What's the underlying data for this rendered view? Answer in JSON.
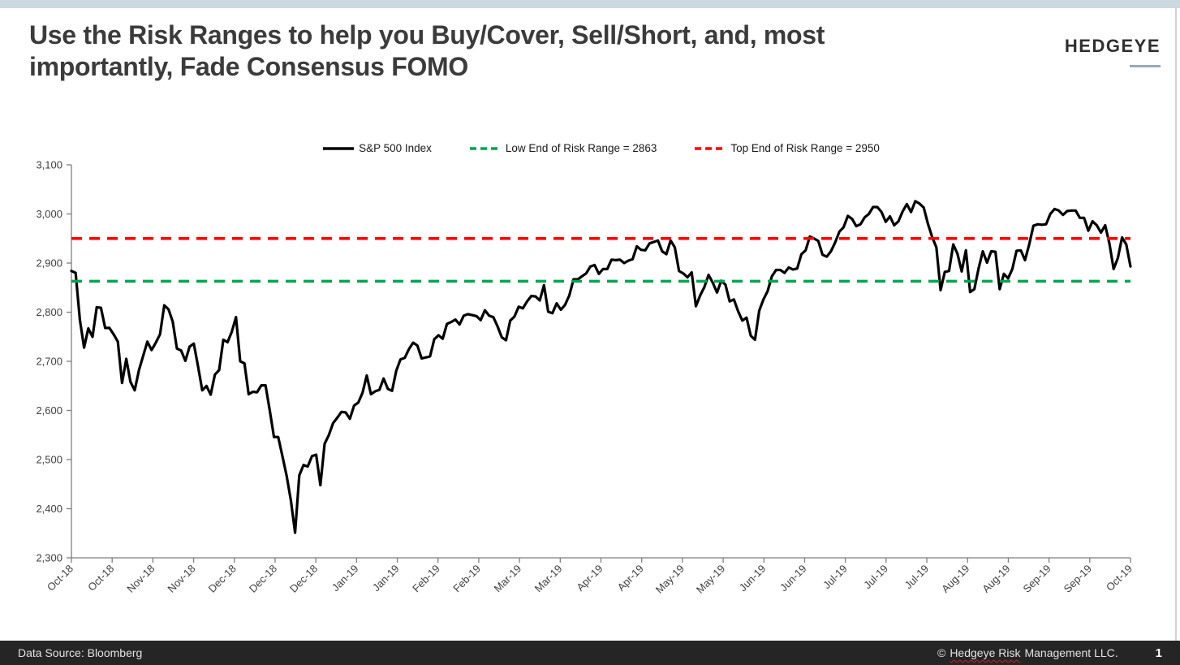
{
  "header": {
    "title_line1": "Use the Risk Ranges to help you Buy/Cover, Sell/Short, and, most",
    "title_line2": "importantly, Fade Consensus FOMO",
    "brand": "HEDGEYE"
  },
  "footer": {
    "data_source": "Data Source: Bloomberg",
    "copyright_symbol": "©",
    "copyright_name": "Hedgeye Risk",
    "copyright_rest": "Management LLC.",
    "page": "1"
  },
  "colors": {
    "accent_bar": "#CDD9E1",
    "footer_bg": "#252525",
    "sp500_line": "#000000",
    "low_risk_green": "#00A651",
    "top_risk_red": "#FF0000",
    "axis_gray": "#7F7F7F"
  },
  "chart_data": {
    "type": "line",
    "title": "",
    "period": "Daily closes, Oct 2018 - Oct 2019",
    "grid": false,
    "legend_position": "top",
    "x_axis": {
      "label_rotation_deg": -45,
      "tick_labels": [
        "Oct-18",
        "Oct-18",
        "Nov-18",
        "Nov-18",
        "Dec-18",
        "Dec-18",
        "Dec-18",
        "Jan-19",
        "Jan-19",
        "Feb-19",
        "Feb-19",
        "Mar-19",
        "Mar-19",
        "Apr-19",
        "Apr-19",
        "May-19",
        "May-19",
        "Jun-19",
        "Jun-19",
        "Jul-19",
        "Jul-19",
        "Jul-19",
        "Aug-19",
        "Aug-19",
        "Sep-19",
        "Sep-19",
        "Oct-19"
      ]
    },
    "y_axis": {
      "min": 2300,
      "max": 3100,
      "step": 100,
      "tick_labels": [
        "2,300",
        "2,400",
        "2,500",
        "2,600",
        "2,700",
        "2,800",
        "2,900",
        "3,000",
        "3,100"
      ]
    },
    "series": [
      {
        "name": "S&P 500 Index",
        "type": "line",
        "style": "solid",
        "color": "#000000",
        "values": [
          2884,
          2880,
          2785,
          2728,
          2767,
          2750,
          2810,
          2809,
          2768,
          2768,
          2755,
          2740,
          2656,
          2705,
          2658,
          2641,
          2682,
          2711,
          2740,
          2723,
          2738,
          2755,
          2814,
          2806,
          2781,
          2726,
          2722,
          2701,
          2730,
          2736,
          2690,
          2641,
          2650,
          2632,
          2673,
          2682,
          2744,
          2739,
          2760,
          2790,
          2700,
          2696,
          2633,
          2638,
          2637,
          2651,
          2651,
          2600,
          2546,
          2546,
          2507,
          2467,
          2417,
          2351,
          2468,
          2489,
          2486,
          2507,
          2510,
          2448,
          2532,
          2550,
          2574,
          2585,
          2597,
          2596,
          2583,
          2610,
          2616,
          2636,
          2671,
          2633,
          2639,
          2642,
          2665,
          2644,
          2640,
          2681,
          2704,
          2707,
          2725,
          2738,
          2732,
          2706,
          2708,
          2710,
          2745,
          2753,
          2746,
          2776,
          2780,
          2785,
          2775,
          2793,
          2796,
          2794,
          2792,
          2784,
          2804,
          2793,
          2790,
          2771,
          2749,
          2743,
          2783,
          2791,
          2811,
          2808,
          2822,
          2833,
          2832,
          2824,
          2855,
          2801,
          2798,
          2818,
          2805,
          2815,
          2834,
          2867,
          2867,
          2873,
          2879,
          2893,
          2896,
          2878,
          2888,
          2888,
          2907,
          2906,
          2907,
          2900,
          2905,
          2908,
          2934,
          2927,
          2926,
          2940,
          2943,
          2946,
          2924,
          2918,
          2946,
          2932,
          2884,
          2879,
          2871,
          2881,
          2812,
          2834,
          2851,
          2876,
          2860,
          2840,
          2864,
          2856,
          2822,
          2826,
          2802,
          2783,
          2789,
          2752,
          2744,
          2803,
          2826,
          2843,
          2873,
          2886,
          2886,
          2880,
          2891,
          2887,
          2889,
          2918,
          2926,
          2954,
          2950,
          2945,
          2917,
          2913,
          2924,
          2942,
          2964,
          2973,
          2996,
          2990,
          2975,
          2979,
          2993,
          3000,
          3014,
          3014,
          3004,
          2984,
          2995,
          2977,
          2985,
          3005,
          3020,
          3004,
          3026,
          3021,
          3013,
          2980,
          2953,
          2932,
          2845,
          2882,
          2884,
          2938,
          2919,
          2883,
          2926,
          2841,
          2847,
          2889,
          2924,
          2901,
          2924,
          2923,
          2847,
          2878,
          2869,
          2888,
          2925,
          2926,
          2906,
          2938,
          2976,
          2979,
          2978,
          2979,
          3000,
          3010,
          3007,
          2998,
          3006,
          3007,
          3007,
          2992,
          2992,
          2966,
          2985,
          2977,
          2962,
          2977,
          2940,
          2888,
          2910,
          2952,
          2938,
          2893
        ]
      },
      {
        "name": "Low End of Risk Range = 2863",
        "type": "hline",
        "style": "dashed",
        "color": "#00A651",
        "value": 2863
      },
      {
        "name": "Top End of Risk Range = 2950",
        "type": "hline",
        "style": "dashed",
        "color": "#FF0000",
        "value": 2950
      }
    ]
  }
}
